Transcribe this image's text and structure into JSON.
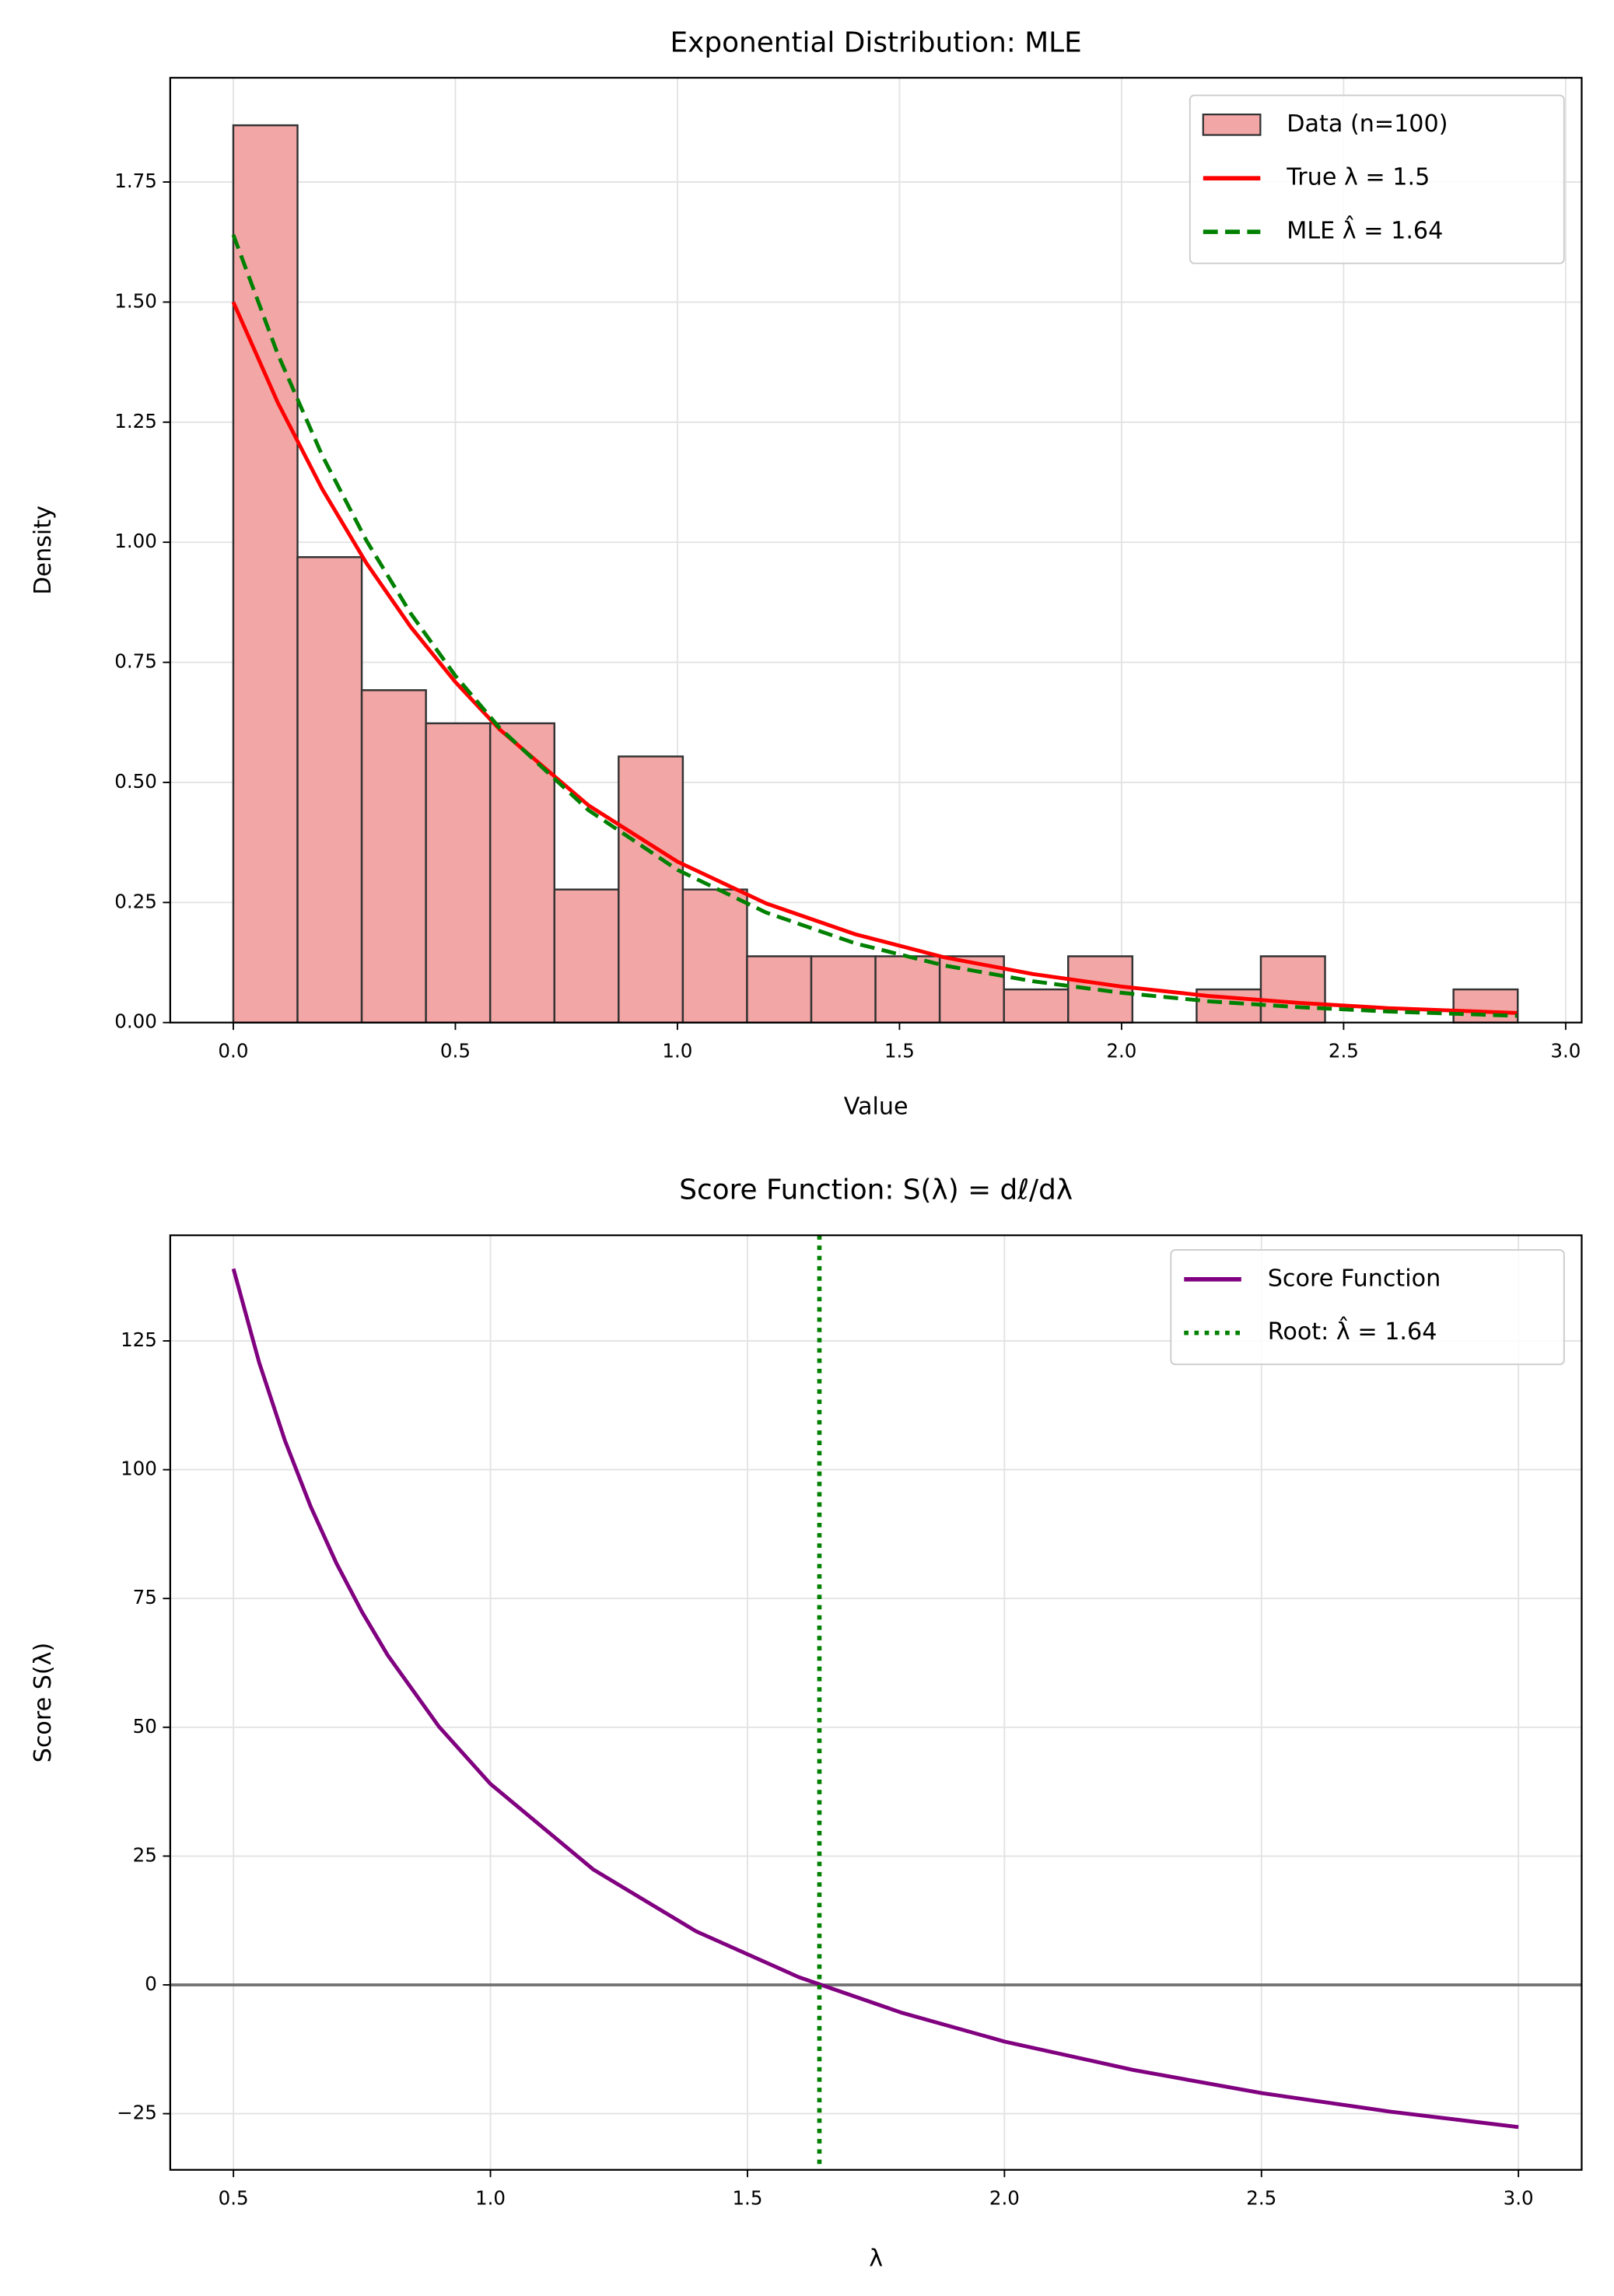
{
  "chart_data": [
    {
      "type": "histogram",
      "title": "Exponential Distribution: MLE",
      "xlabel": "Value",
      "ylabel": "Density",
      "xlim": [
        -0.142,
        3.036
      ],
      "ylim": [
        0,
        1.967
      ],
      "xticks": [
        {
          "value": 0,
          "label": "0.0"
        },
        0.5,
        {
          "value": 1,
          "label": "1.0"
        },
        1.5,
        {
          "value": 2,
          "label": "2.0"
        },
        2.5,
        {
          "value": 3,
          "label": "3.0"
        }
      ],
      "yticks": [
        {
          "value": 0,
          "label": "0.00"
        },
        0.25,
        {
          "value": 0.5,
          "label": "0.50"
        },
        0.75,
        {
          "value": 1,
          "label": "1.00"
        },
        1.25,
        {
          "value": 1.5,
          "label": "1.50"
        },
        1.75
      ],
      "grid": true,
      "legend": "upper right",
      "histogram": {
        "name": "Data (n=100)",
        "color": "#f2a6a6",
        "edgecolor": "#333333",
        "bins": [
          0,
          0.1446,
          0.2892,
          0.4338,
          0.5784,
          0.723,
          0.8676,
          1.0122,
          1.1568,
          1.3014,
          1.446,
          1.5906,
          1.7352,
          1.8798,
          2.0244,
          2.169,
          2.3136,
          2.4582,
          2.6028,
          2.7474,
          2.892
        ],
        "values": [
          1.868,
          0.969,
          0.692,
          0.623,
          0.623,
          0.277,
          0.554,
          0.277,
          0.138,
          0.138,
          0.138,
          0.138,
          0.069,
          0.138,
          0,
          0.069,
          0.138,
          0,
          0,
          0.069
        ]
      },
      "x": [
        0,
        0.1,
        0.2,
        0.3,
        0.4,
        0.5,
        0.6,
        0.8,
        1.0,
        1.2,
        1.4,
        1.6,
        1.8,
        2.0,
        2.2,
        2.4,
        2.6,
        2.89
      ],
      "series": [
        {
          "name": "True λ = 1.5",
          "color": "#ff0000",
          "linestyle": "solid",
          "values": [
            1.5,
            1.291,
            1.111,
            0.956,
            0.823,
            0.709,
            0.61,
            0.452,
            0.335,
            0.248,
            0.184,
            0.136,
            0.101,
            0.075,
            0.055,
            0.041,
            0.03,
            0.02
          ]
        },
        {
          "name": "MLE λ̂ = 1.64",
          "color": "#008000",
          "linestyle": "dashed",
          "values": [
            1.64,
            1.392,
            1.181,
            1.003,
            0.851,
            0.722,
            0.613,
            0.442,
            0.318,
            0.229,
            0.165,
            0.119,
            0.086,
            0.062,
            0.044,
            0.032,
            0.023,
            0.014
          ]
        }
      ]
    },
    {
      "type": "line",
      "title": "Score Function: S(λ) = dℓ/dλ",
      "xlabel": "λ",
      "ylabel": "Score S(λ)",
      "xlim": [
        0.377,
        3.123
      ],
      "ylim": [
        -35.9,
        145.5
      ],
      "xticks": [
        0.5,
        {
          "value": 1,
          "label": "1.0"
        },
        1.5,
        {
          "value": 2,
          "label": "2.0"
        },
        2.5,
        {
          "value": 3,
          "label": "3.0"
        }
      ],
      "yticks": [
        {
          "value": -25,
          "label": "−25"
        },
        0,
        25,
        50,
        75,
        100,
        125
      ],
      "grid": true,
      "legend": "upper right",
      "x": [
        0.5,
        0.55,
        0.6,
        0.65,
        0.7,
        0.75,
        0.8,
        0.9,
        1.0,
        1.2,
        1.4,
        1.6,
        1.8,
        2.0,
        2.25,
        2.5,
        2.75,
        3.0
      ],
      "series": [
        {
          "name": "Score Function",
          "color": "#800080",
          "linestyle": "solid",
          "values": [
            139.0,
            120.8,
            105.7,
            92.9,
            81.9,
            72.4,
            64.0,
            50.1,
            39.0,
            22.4,
            10.4,
            1.5,
            -5.4,
            -11.0,
            -16.5,
            -21.0,
            -24.6,
            -27.6
          ]
        }
      ],
      "vlines": [
        {
          "name": "Root: λ̂ = 1.64",
          "color": "#008000",
          "linestyle": "dotted",
          "x": 1.64
        }
      ],
      "hline": {
        "y": 0,
        "color": "#707070"
      }
    }
  ]
}
